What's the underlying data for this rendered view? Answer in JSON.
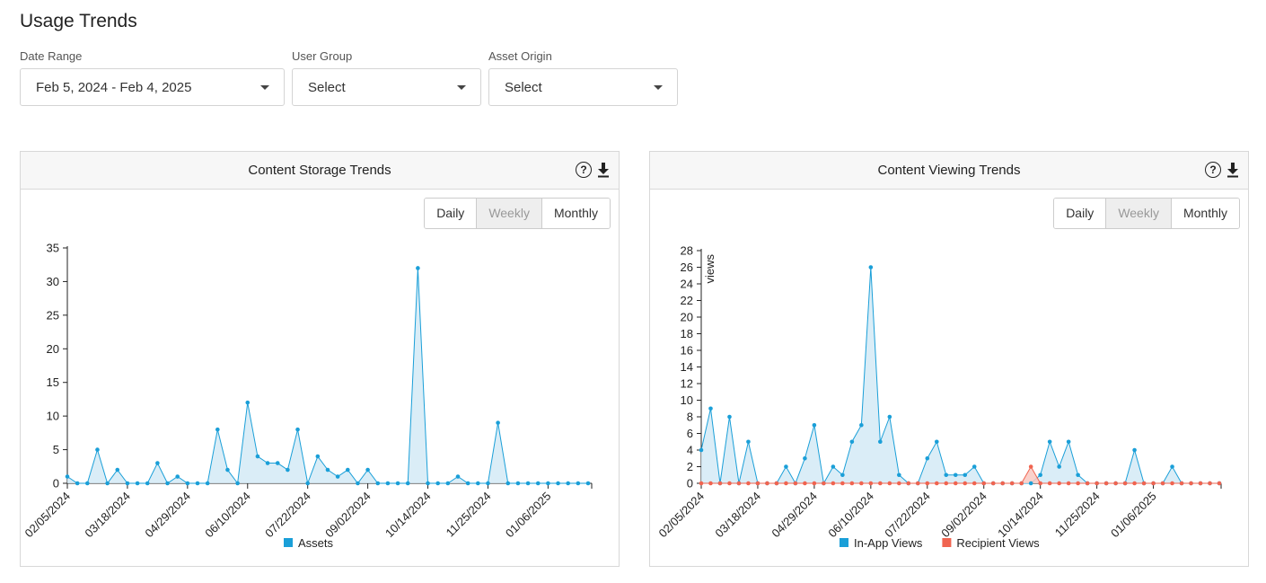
{
  "page": {
    "title": "Usage Trends"
  },
  "filters": {
    "date_range": {
      "label": "Date Range",
      "value": "Feb 5, 2024 - Feb 4, 2025"
    },
    "user_group": {
      "label": "User Group",
      "value": "Select"
    },
    "asset_origin": {
      "label": "Asset Origin",
      "value": "Select"
    }
  },
  "panels": {
    "storage": {
      "title": "Content Storage Trends",
      "toggle": [
        "Daily",
        "Weekly",
        "Monthly"
      ],
      "active_toggle": "Weekly"
    },
    "viewing": {
      "title": "Content Viewing Trends",
      "toggle": [
        "Daily",
        "Weekly",
        "Monthly"
      ],
      "active_toggle": "Weekly"
    }
  },
  "icons": {
    "help": "help-circle-icon",
    "download": "download-icon"
  },
  "help_glyph": "?",
  "colors": {
    "in_app": "#1a9fd8",
    "in_app_fill": "#d4eaf6",
    "recipient": "#f06450",
    "recipient_fill": "#f9c9c2"
  },
  "chart_data": [
    {
      "type": "area",
      "title": "Content Storage Trends",
      "xlabel": "",
      "ylabel": "",
      "ylim": [
        0,
        35
      ],
      "yticks": [
        0,
        5,
        10,
        15,
        20,
        25,
        30,
        35
      ],
      "x_tick_labels": [
        "02/05/2024",
        "03/18/2024",
        "04/29/2024",
        "06/10/2024",
        "07/22/2024",
        "09/02/2024",
        "10/14/2024",
        "11/25/2024",
        "01/06/2025"
      ],
      "legend_position": "bottom",
      "series": [
        {
          "name": "Assets",
          "color": "#1a9fd8",
          "values": [
            1,
            0,
            0,
            5,
            0,
            2,
            0,
            0,
            0,
            3,
            0,
            1,
            0,
            0,
            0,
            8,
            2,
            0,
            12,
            4,
            3,
            3,
            2,
            8,
            0,
            4,
            2,
            1,
            2,
            0,
            2,
            0,
            0,
            0,
            0,
            32,
            0,
            0,
            0,
            1,
            0,
            0,
            0,
            9,
            0,
            0,
            0,
            0,
            0,
            0,
            0,
            0,
            0
          ]
        }
      ]
    },
    {
      "type": "area",
      "title": "Content Viewing Trends",
      "xlabel": "",
      "ylabel": "views",
      "ylim": [
        0,
        28
      ],
      "yticks": [
        0,
        2,
        4,
        6,
        8,
        10,
        12,
        14,
        16,
        18,
        20,
        22,
        24,
        26,
        28
      ],
      "x_tick_labels": [
        "02/05/2024",
        "03/18/2024",
        "04/29/2024",
        "06/10/2024",
        "07/22/2024",
        "09/02/2024",
        "10/14/2024",
        "11/25/2024",
        "01/06/2025"
      ],
      "legend_position": "bottom",
      "series": [
        {
          "name": "In-App Views",
          "color": "#1a9fd8",
          "values": [
            4,
            9,
            0,
            8,
            0,
            5,
            0,
            0,
            0,
            2,
            0,
            3,
            7,
            0,
            2,
            1,
            5,
            7,
            26,
            5,
            8,
            1,
            0,
            0,
            3,
            5,
            1,
            1,
            1,
            2,
            0,
            0,
            0,
            0,
            0,
            0,
            1,
            5,
            2,
            5,
            1,
            0,
            0,
            0,
            0,
            0,
            4,
            0,
            0,
            0,
            2,
            0,
            0,
            0,
            0,
            0
          ]
        },
        {
          "name": "Recipient Views",
          "color": "#f06450",
          "values": [
            0,
            0,
            0,
            0,
            0,
            0,
            0,
            0,
            0,
            0,
            0,
            0,
            0,
            0,
            0,
            0,
            0,
            0,
            0,
            0,
            0,
            0,
            0,
            0,
            0,
            0,
            0,
            0,
            0,
            0,
            0,
            0,
            0,
            0,
            0,
            2,
            0,
            0,
            0,
            0,
            0,
            0,
            0,
            0,
            0,
            0,
            0,
            0,
            0,
            0,
            0,
            0,
            0,
            0,
            0,
            0
          ]
        }
      ]
    }
  ]
}
